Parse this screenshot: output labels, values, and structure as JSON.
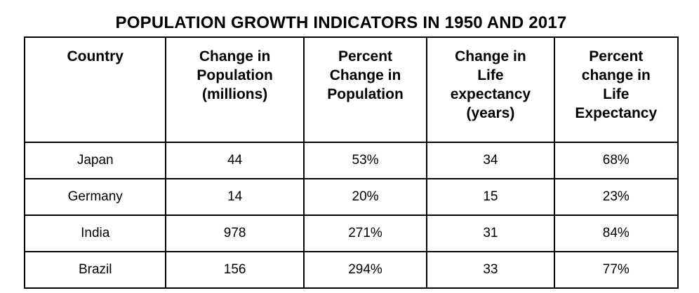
{
  "title": "POPULATION GROWTH INDICATORS IN 1950 AND 2017",
  "table": {
    "headers": [
      [
        "Country"
      ],
      [
        "Change in",
        "Population",
        "(millions)"
      ],
      [
        "Percent",
        "Change in",
        "Population"
      ],
      [
        "Change in",
        "Life",
        "expectancy",
        "(years)"
      ],
      [
        "Percent",
        "change in",
        "Life",
        "Expectancy"
      ]
    ],
    "rows": [
      [
        "Japan",
        "44",
        "53%",
        "34",
        "68%"
      ],
      [
        "Germany",
        "14",
        "20%",
        "15",
        "23%"
      ],
      [
        "India",
        "978",
        "271%",
        "31",
        "84%"
      ],
      [
        "Brazil",
        "156",
        "294%",
        "33",
        "77%"
      ]
    ]
  }
}
